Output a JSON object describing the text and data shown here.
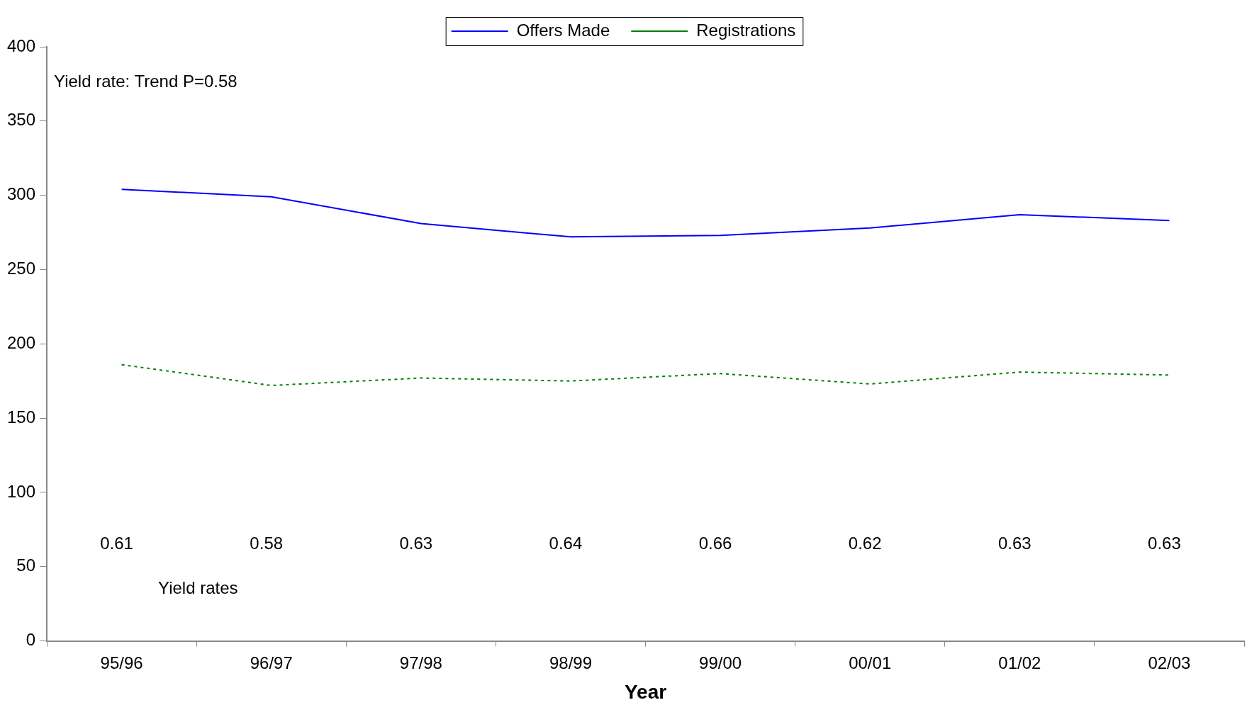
{
  "chart_data": {
    "type": "line",
    "xlabel": "Year",
    "categories": [
      "95/96",
      "96/97",
      "97/98",
      "98/99",
      "99/00",
      "00/01",
      "01/02",
      "02/03"
    ],
    "series": [
      {
        "name": "Offers Made",
        "color": "#0000ff",
        "line_style": "solid",
        "values": [
          304,
          299,
          281,
          272,
          273,
          278,
          287,
          283
        ]
      },
      {
        "name": "Registrations",
        "color": "#008000",
        "line_style": "dotted",
        "values": [
          186,
          172,
          177,
          175,
          180,
          173,
          181,
          179
        ]
      }
    ],
    "ylim": [
      0,
      400
    ],
    "yticks": [
      0,
      50,
      100,
      150,
      200,
      250,
      300,
      350,
      400
    ],
    "grid": false,
    "legend": "top",
    "marker": "none",
    "annotations": [
      "Yield rate: Trend P=0.58",
      "Yield rates",
      "0.61",
      "0.58",
      "0.63",
      "0.64",
      "0.66",
      "0.62",
      "0.63",
      "0.63"
    ]
  }
}
